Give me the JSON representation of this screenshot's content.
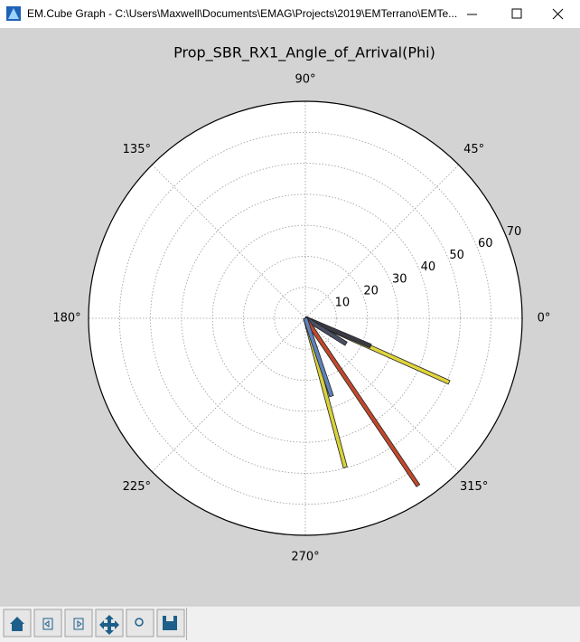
{
  "window": {
    "title": "EM.Cube Graph - C:\\Users\\Maxwell\\Documents\\EMAG\\Projects\\2019\\EMTerrano\\EMTe..."
  },
  "chart_data": {
    "type": "polar",
    "title": "Prop_SBR_RX1_Angle_of_Arrival(Phi)",
    "theta": [
      336,
      337,
      328,
      304,
      285,
      288.6
    ],
    "r": [
      50.8,
      22.9,
      15.5,
      65.1,
      49.8,
      26.5
    ],
    "colors": [
      "#e0d43c",
      "#3a3a44",
      "#4a4f66",
      "#c2482c",
      "#d8d23a",
      "#5f82bc"
    ],
    "rlim": [
      0,
      70
    ],
    "rticks": [
      10,
      20,
      30,
      40,
      50,
      60,
      70
    ],
    "thetaticks": [
      {
        "value": 0,
        "label": "0°"
      },
      {
        "value": 45,
        "label": "45°"
      },
      {
        "value": 90,
        "label": "90°"
      },
      {
        "value": 135,
        "label": "135°"
      },
      {
        "value": 180,
        "label": "180°"
      },
      {
        "value": 225,
        "label": "225°"
      },
      {
        "value": 270,
        "label": "270°"
      },
      {
        "value": 315,
        "label": "315°"
      }
    ],
    "grid": true
  }
}
